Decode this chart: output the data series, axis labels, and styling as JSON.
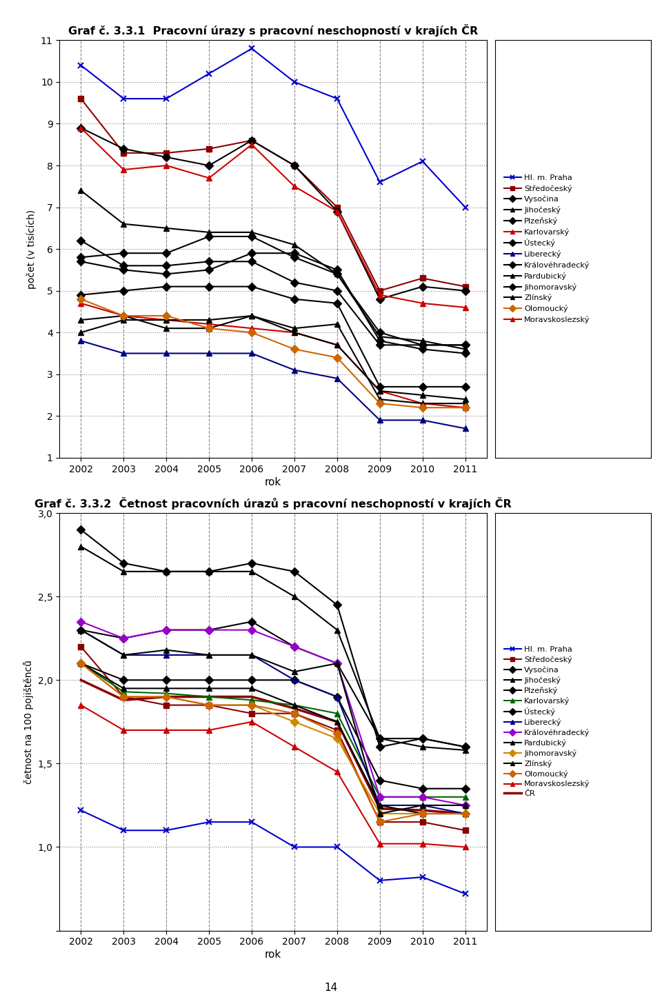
{
  "years": [
    2002,
    2003,
    2004,
    2005,
    2006,
    2007,
    2008,
    2009,
    2010,
    2011
  ],
  "title1": "Graf č. 3.3.1  Pracovní úrazy s pracovní neschopností v krajích ČR",
  "title2": "Graf č. 3.3.2  Četnost pracovních úrazů s pracovní neschopností v krajích ČR",
  "ylabel1": "počet (v tisících)",
  "ylabel2": "četnost na 100 pojištěnců",
  "xlabel": "rok",
  "page_number": "14",
  "series1": {
    "Hl. m. Praha": [
      10.4,
      9.6,
      9.6,
      10.2,
      10.8,
      10.0,
      9.6,
      7.6,
      8.1,
      7.0
    ],
    "Středočeský": [
      9.6,
      8.3,
      8.3,
      8.4,
      8.6,
      8.0,
      7.0,
      5.0,
      5.3,
      5.1
    ],
    "Vysočina": [
      5.8,
      5.9,
      5.9,
      6.3,
      6.3,
      5.8,
      5.4,
      4.0,
      3.7,
      3.7
    ],
    "Jihočeský": [
      7.4,
      6.6,
      6.5,
      6.4,
      6.4,
      6.1,
      5.4,
      3.9,
      3.8,
      3.6
    ],
    "Plzeňský": [
      6.2,
      5.6,
      5.6,
      5.7,
      5.7,
      5.2,
      5.0,
      3.7,
      3.7,
      3.7
    ],
    "Karlovarský": [
      4.7,
      4.4,
      4.3,
      4.2,
      4.1,
      4.0,
      3.7,
      2.6,
      2.3,
      2.2
    ],
    "Ústecký": [
      5.7,
      5.5,
      5.4,
      5.5,
      5.9,
      5.9,
      5.5,
      3.8,
      3.6,
      3.5
    ],
    "Liberecký": [
      3.8,
      3.5,
      3.5,
      3.5,
      3.5,
      3.1,
      2.9,
      1.9,
      1.9,
      1.7
    ],
    "Královéhradecký": [
      4.9,
      5.0,
      5.1,
      5.1,
      5.1,
      4.8,
      4.7,
      2.7,
      2.7,
      2.7
    ],
    "Pardubický": [
      4.3,
      4.4,
      4.1,
      4.1,
      4.4,
      4.0,
      3.7,
      2.6,
      2.5,
      2.4
    ],
    "Jihomoravský": [
      8.9,
      8.4,
      8.2,
      8.0,
      8.6,
      8.0,
      6.9,
      4.8,
      5.1,
      5.0
    ],
    "Zlínský": [
      4.0,
      4.3,
      4.3,
      4.3,
      4.4,
      4.1,
      4.2,
      2.4,
      2.3,
      2.3
    ],
    "Olomoucký": [
      4.8,
      4.4,
      4.4,
      4.1,
      4.0,
      3.6,
      3.4,
      2.3,
      2.2,
      2.2
    ],
    "Moravskoslezský": [
      8.9,
      7.9,
      8.0,
      7.7,
      8.5,
      7.5,
      6.9,
      4.9,
      4.7,
      4.6
    ]
  },
  "series2": {
    "Hl. m. Praha": [
      1.22,
      1.1,
      1.1,
      1.15,
      1.15,
      1.0,
      1.0,
      0.8,
      0.82,
      0.72
    ],
    "Středočeský": [
      2.2,
      1.9,
      1.85,
      1.85,
      1.8,
      1.8,
      1.7,
      1.15,
      1.15,
      1.1
    ],
    "Vysočina": [
      2.9,
      2.7,
      2.65,
      2.65,
      2.7,
      2.65,
      2.45,
      1.6,
      1.65,
      1.6
    ],
    "Jihočeský": [
      2.8,
      2.65,
      2.65,
      2.65,
      2.65,
      2.5,
      2.3,
      1.65,
      1.6,
      1.58
    ],
    "Plzeňský": [
      2.3,
      2.25,
      2.3,
      2.3,
      2.35,
      2.2,
      2.1,
      1.65,
      1.65,
      1.6
    ],
    "Karlovarský": [
      2.1,
      1.93,
      1.92,
      1.9,
      1.88,
      1.85,
      1.8,
      1.3,
      1.3,
      1.3
    ],
    "Ústecký": [
      2.1,
      2.0,
      2.0,
      2.0,
      2.0,
      2.0,
      1.9,
      1.4,
      1.35,
      1.35
    ],
    "Liberecký": [
      2.3,
      2.15,
      2.15,
      2.15,
      2.15,
      2.0,
      1.9,
      1.25,
      1.25,
      1.2
    ],
    "Královéhradecký": [
      2.35,
      2.25,
      2.3,
      2.3,
      2.3,
      2.2,
      2.1,
      1.3,
      1.3,
      1.25
    ],
    "Pardubický": [
      2.1,
      1.95,
      1.95,
      1.95,
      1.95,
      1.85,
      1.75,
      1.25,
      1.2,
      1.2
    ],
    "Jihomoravský": [
      2.1,
      1.9,
      1.9,
      1.85,
      1.85,
      1.75,
      1.65,
      1.2,
      1.2,
      1.2
    ],
    "Zlínský": [
      2.3,
      2.15,
      2.18,
      2.15,
      2.15,
      2.05,
      2.1,
      1.2,
      1.25,
      1.25
    ],
    "Olomoucký": [
      2.1,
      1.9,
      1.9,
      1.85,
      1.85,
      1.8,
      1.68,
      1.15,
      1.2,
      1.2
    ],
    "Moravskoslezský": [
      1.85,
      1.7,
      1.7,
      1.7,
      1.75,
      1.6,
      1.45,
      1.02,
      1.02,
      1.0
    ],
    "ČR": [
      2.0,
      1.88,
      1.9,
      1.9,
      1.9,
      1.83,
      1.75,
      1.23,
      1.22,
      1.2
    ]
  },
  "legend_order1": [
    "Hl. m. Praha",
    "Středočeský",
    "Vysočina",
    "Jihočeský",
    "Plzeňský",
    "Karlovarský",
    "Ústecký",
    "Liberecký",
    "Královéhradecký",
    "Pardubický",
    "Jihomoravský",
    "Zlínský",
    "Olomoucký",
    "Moravskoslezský"
  ],
  "legend_order2": [
    "Hl. m. Praha",
    "Středočeský",
    "Vysočina",
    "Jihočeský",
    "Plzeňský",
    "Karlovarský",
    "Ústecký",
    "Liberecký",
    "Královéhradecký",
    "Pardubický",
    "Jihomoravský",
    "Zlínský",
    "Olomoucký",
    "Moravskoslezský",
    "ČR"
  ],
  "colors1": {
    "Hl. m. Praha": "#0000CC",
    "Středočeský": "#8B0000",
    "Vysočina": "#000000",
    "Jihočeský": "#000000",
    "Plzeňský": "#000000",
    "Karlovarský": "#CC0000",
    "Ústecký": "#000000",
    "Liberecký": "#000080",
    "Královéhradecký": "#000000",
    "Pardubický": "#000000",
    "Jihomoravský": "#000000",
    "Zlínský": "#000000",
    "Olomoucký": "#CC6600",
    "Moravskoslezský": "#CC0000"
  },
  "colors2": {
    "Hl. m. Praha": "#0000CC",
    "Středočeský": "#8B0000",
    "Vysočina": "#000000",
    "Jihočeský": "#000000",
    "Plzeňský": "#000000",
    "Karlovarský": "#006600",
    "Ústecký": "#000000",
    "Liberecký": "#000080",
    "Královéhradecký": "#9900CC",
    "Pardubický": "#000000",
    "Jihomoravský": "#CC8800",
    "Zlínský": "#000000",
    "Olomoucký": "#CC6600",
    "Moravskoslezský": "#CC0000",
    "ČR": "#8B0000"
  },
  "markers1": {
    "Hl. m. Praha": "x",
    "Středočeský": "s",
    "Vysočina": "D",
    "Jihočeský": "^",
    "Plzeňský": "D",
    "Karlovarský": "^",
    "Ústecký": "D",
    "Liberecký": "^",
    "Královéhradecký": "D",
    "Pardubický": "^",
    "Jihomoravský": "D",
    "Zlínský": "^",
    "Olomoucký": "D",
    "Moravskoslezský": "^"
  },
  "markers2": {
    "Hl. m. Praha": "x",
    "Středočeský": "s",
    "Vysočina": "D",
    "Jihočeský": "^",
    "Plzeňský": "D",
    "Karlovarský": "^",
    "Ústecký": "D",
    "Liberecký": "^",
    "Královéhradecký": "D",
    "Pardubický": "^",
    "Jihomoravský": "D",
    "Zlínský": "^",
    "Olomoucký": "D",
    "Moravskoslezský": "^",
    "ČR": ""
  },
  "ylim1": [
    1,
    11
  ],
  "ylim2": [
    0.5,
    3.0
  ],
  "yticks1": [
    1,
    2,
    3,
    4,
    5,
    6,
    7,
    8,
    9,
    10,
    11
  ],
  "yticks2": [
    0.5,
    1.0,
    1.5,
    2.0,
    2.5,
    3.0
  ],
  "ytick_labels2": [
    "",
    "1,0",
    "1,5",
    "2,0",
    "2,5",
    "3,0"
  ],
  "bg_color": "#FFFFFF"
}
